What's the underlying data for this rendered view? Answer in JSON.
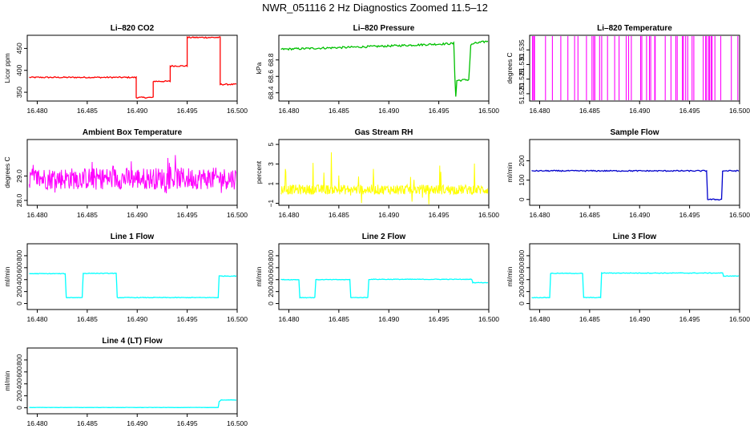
{
  "page": {
    "title": "NWR_051116  2 Hz Diagnostics Zoomed 11.5–12"
  },
  "chart_data": [
    {
      "id": "li820-co2",
      "type": "line",
      "title": "Li–820 CO2",
      "ylabel": "Licor ppm",
      "color": "#ff0000",
      "xlim": [
        16.479,
        16.5
      ],
      "ylim": [
        330,
        480
      ],
      "xticks": [
        "16.480",
        "16.485",
        "16.490",
        "16.495",
        "16.500"
      ],
      "yticks": [
        {
          "v": 350,
          "label": "350"
        },
        {
          "v": 400,
          "label": "400"
        },
        {
          "v": 450,
          "label": "450"
        }
      ],
      "points": [
        [
          16.4792,
          384
        ],
        [
          16.4899,
          384
        ],
        [
          16.4899,
          338
        ],
        [
          16.4916,
          338
        ],
        [
          16.4916,
          375
        ],
        [
          16.4933,
          375
        ],
        [
          16.4933,
          410
        ],
        [
          16.495,
          410
        ],
        [
          16.495,
          475
        ],
        [
          16.4983,
          475
        ],
        [
          16.4983,
          368
        ],
        [
          16.5,
          368
        ]
      ],
      "noise": 1.5
    },
    {
      "id": "li820-pressure",
      "type": "line",
      "title": "Li–820 Pressure",
      "ylabel": "kPa",
      "color": "#00c000",
      "xlim": [
        16.479,
        16.5
      ],
      "ylim": [
        68.3,
        69.1
      ],
      "xticks": [
        "16.480",
        "16.485",
        "16.490",
        "16.495",
        "16.500"
      ],
      "yticks": [
        {
          "v": 68.4,
          "label": "68.4"
        },
        {
          "v": 68.6,
          "label": "68.6"
        },
        {
          "v": 68.8,
          "label": "68.8"
        }
      ],
      "points": [
        [
          16.4792,
          68.93
        ],
        [
          16.485,
          68.95
        ],
        [
          16.49,
          68.97
        ],
        [
          16.4965,
          69.0
        ],
        [
          16.4966,
          68.62
        ],
        [
          16.4967,
          68.35
        ],
        [
          16.4968,
          68.55
        ],
        [
          16.498,
          68.56
        ],
        [
          16.4982,
          68.98
        ],
        [
          16.4985,
          69.0
        ],
        [
          16.5,
          69.03
        ]
      ],
      "noise": 0.012
    },
    {
      "id": "li820-temperature",
      "type": "spikes",
      "title": "Li–820 Temperature",
      "ylabel": "degrees C",
      "color": "#ff00ff",
      "xlim": [
        16.479,
        16.5
      ],
      "ylim": [
        51.5175,
        51.54
      ],
      "xticks": [
        "16.480",
        "16.485",
        "16.490",
        "16.495",
        "16.500"
      ],
      "yticks": [
        {
          "v": 51.52,
          "label": "51.520"
        },
        {
          "v": 51.525,
          "label": "51.525"
        },
        {
          "v": 51.53,
          "label": "51.530"
        },
        {
          "v": 51.535,
          "label": "51.535"
        }
      ],
      "levels": [
        51.5175,
        51.54
      ],
      "density": 0.45
    },
    {
      "id": "ambient-box-temperature",
      "type": "noise",
      "title": "Ambient Box Temperature",
      "ylabel": "degrees C",
      "color": "#ff00ff",
      "xlim": [
        16.479,
        16.5
      ],
      "ylim": [
        27.8,
        30.5
      ],
      "xticks": [
        "16.480",
        "16.485",
        "16.490",
        "16.495",
        "16.500"
      ],
      "yticks": [
        {
          "v": 28.0,
          "label": "28.0"
        },
        {
          "v": 29.0,
          "label": "29.0"
        }
      ],
      "base": 28.9,
      "amp": 0.45,
      "spike": 0.6
    },
    {
      "id": "gas-stream-rh",
      "type": "noise",
      "title": "Gas Stream RH",
      "ylabel": "percent",
      "color": "#ffff00",
      "xlim": [
        16.479,
        16.5
      ],
      "ylim": [
        -1.2,
        5.5
      ],
      "xticks": [
        "16.480",
        "16.485",
        "16.490",
        "16.495",
        "16.500"
      ],
      "yticks": [
        {
          "v": -1,
          "label": "−1"
        },
        {
          "v": 1,
          "label": "1"
        },
        {
          "v": 3,
          "label": "3"
        },
        {
          "v": 5,
          "label": "5"
        }
      ],
      "base": 0.4,
      "amp": 0.5,
      "spike": 2.5
    },
    {
      "id": "sample-flow",
      "type": "line",
      "title": "Sample Flow",
      "ylabel": "ml/min",
      "color": "#0000cc",
      "xlim": [
        16.479,
        16.5
      ],
      "ylim": [
        -30,
        310
      ],
      "xticks": [
        "16.480",
        "16.485",
        "16.490",
        "16.495",
        "16.500"
      ],
      "yticks": [
        {
          "v": 0,
          "label": "0"
        },
        {
          "v": 100,
          "label": "100"
        },
        {
          "v": 200,
          "label": "200"
        }
      ],
      "points": [
        [
          16.4792,
          148
        ],
        [
          16.4967,
          148
        ],
        [
          16.4968,
          0
        ],
        [
          16.4982,
          0
        ],
        [
          16.4983,
          148
        ],
        [
          16.5,
          148
        ]
      ],
      "noise": 3
    },
    {
      "id": "line-1-flow",
      "type": "line",
      "title": "Line 1 Flow",
      "ylabel": "ml/min",
      "color": "#00ffff",
      "xlim": [
        16.479,
        16.5
      ],
      "ylim": [
        -100,
        1000
      ],
      "xticks": [
        "16.480",
        "16.485",
        "16.490",
        "16.495",
        "16.500"
      ],
      "yticks": [
        {
          "v": 0,
          "label": "0"
        },
        {
          "v": 200,
          "label": "200"
        },
        {
          "v": 400,
          "label": "400"
        },
        {
          "v": 600,
          "label": "600"
        },
        {
          "v": 800,
          "label": "800"
        }
      ],
      "points": [
        [
          16.4792,
          500
        ],
        [
          16.4828,
          500
        ],
        [
          16.4829,
          100
        ],
        [
          16.4845,
          100
        ],
        [
          16.4846,
          505
        ],
        [
          16.4879,
          505
        ],
        [
          16.488,
          100
        ],
        [
          16.4981,
          100
        ],
        [
          16.4982,
          460
        ],
        [
          16.5,
          460
        ]
      ],
      "noise": 5
    },
    {
      "id": "line-2-flow",
      "type": "line",
      "title": "Line 2 Flow",
      "ylabel": "ml/min",
      "color": "#00ffff",
      "xlim": [
        16.479,
        16.5
      ],
      "ylim": [
        -100,
        1000
      ],
      "xticks": [
        "16.480",
        "16.485",
        "16.490",
        "16.495",
        "16.500"
      ],
      "yticks": [
        {
          "v": 0,
          "label": "0"
        },
        {
          "v": 200,
          "label": "200"
        },
        {
          "v": 400,
          "label": "400"
        },
        {
          "v": 600,
          "label": "600"
        },
        {
          "v": 800,
          "label": "800"
        }
      ],
      "points": [
        [
          16.4792,
          400
        ],
        [
          16.481,
          400
        ],
        [
          16.4811,
          100
        ],
        [
          16.4826,
          100
        ],
        [
          16.4827,
          400
        ],
        [
          16.4861,
          400
        ],
        [
          16.4862,
          100
        ],
        [
          16.4879,
          100
        ],
        [
          16.488,
          405
        ],
        [
          16.4983,
          405
        ],
        [
          16.4984,
          350
        ],
        [
          16.5,
          350
        ]
      ],
      "noise": 5
    },
    {
      "id": "line-3-flow",
      "type": "line",
      "title": "Line 3 Flow",
      "ylabel": "ml/min",
      "color": "#00ffff",
      "xlim": [
        16.479,
        16.5
      ],
      "ylim": [
        -100,
        1000
      ],
      "xticks": [
        "16.480",
        "16.485",
        "16.490",
        "16.495",
        "16.500"
      ],
      "yticks": [
        {
          "v": 0,
          "label": "0"
        },
        {
          "v": 200,
          "label": "200"
        },
        {
          "v": 400,
          "label": "400"
        },
        {
          "v": 600,
          "label": "600"
        },
        {
          "v": 800,
          "label": "800"
        }
      ],
      "points": [
        [
          16.4792,
          100
        ],
        [
          16.481,
          100
        ],
        [
          16.4811,
          505
        ],
        [
          16.4843,
          505
        ],
        [
          16.4844,
          100
        ],
        [
          16.4861,
          100
        ],
        [
          16.4862,
          510
        ],
        [
          16.4983,
          510
        ],
        [
          16.4984,
          460
        ],
        [
          16.5,
          460
        ]
      ],
      "noise": 5
    },
    {
      "id": "line-4-lt-flow",
      "type": "line",
      "title": "Line 4 (LT) Flow",
      "ylabel": "ml/min",
      "color": "#00ffff",
      "xlim": [
        16.479,
        16.5
      ],
      "ylim": [
        -100,
        1000
      ],
      "xticks": [
        "16.480",
        "16.485",
        "16.490",
        "16.495",
        "16.500"
      ],
      "yticks": [
        {
          "v": 0,
          "label": "0"
        },
        {
          "v": 200,
          "label": "200"
        },
        {
          "v": 400,
          "label": "400"
        },
        {
          "v": 600,
          "label": "600"
        },
        {
          "v": 800,
          "label": "800"
        }
      ],
      "points": [
        [
          16.4792,
          5
        ],
        [
          16.4981,
          5
        ],
        [
          16.4982,
          100
        ],
        [
          16.4984,
          130
        ],
        [
          16.5,
          130
        ]
      ],
      "noise": 2
    }
  ]
}
